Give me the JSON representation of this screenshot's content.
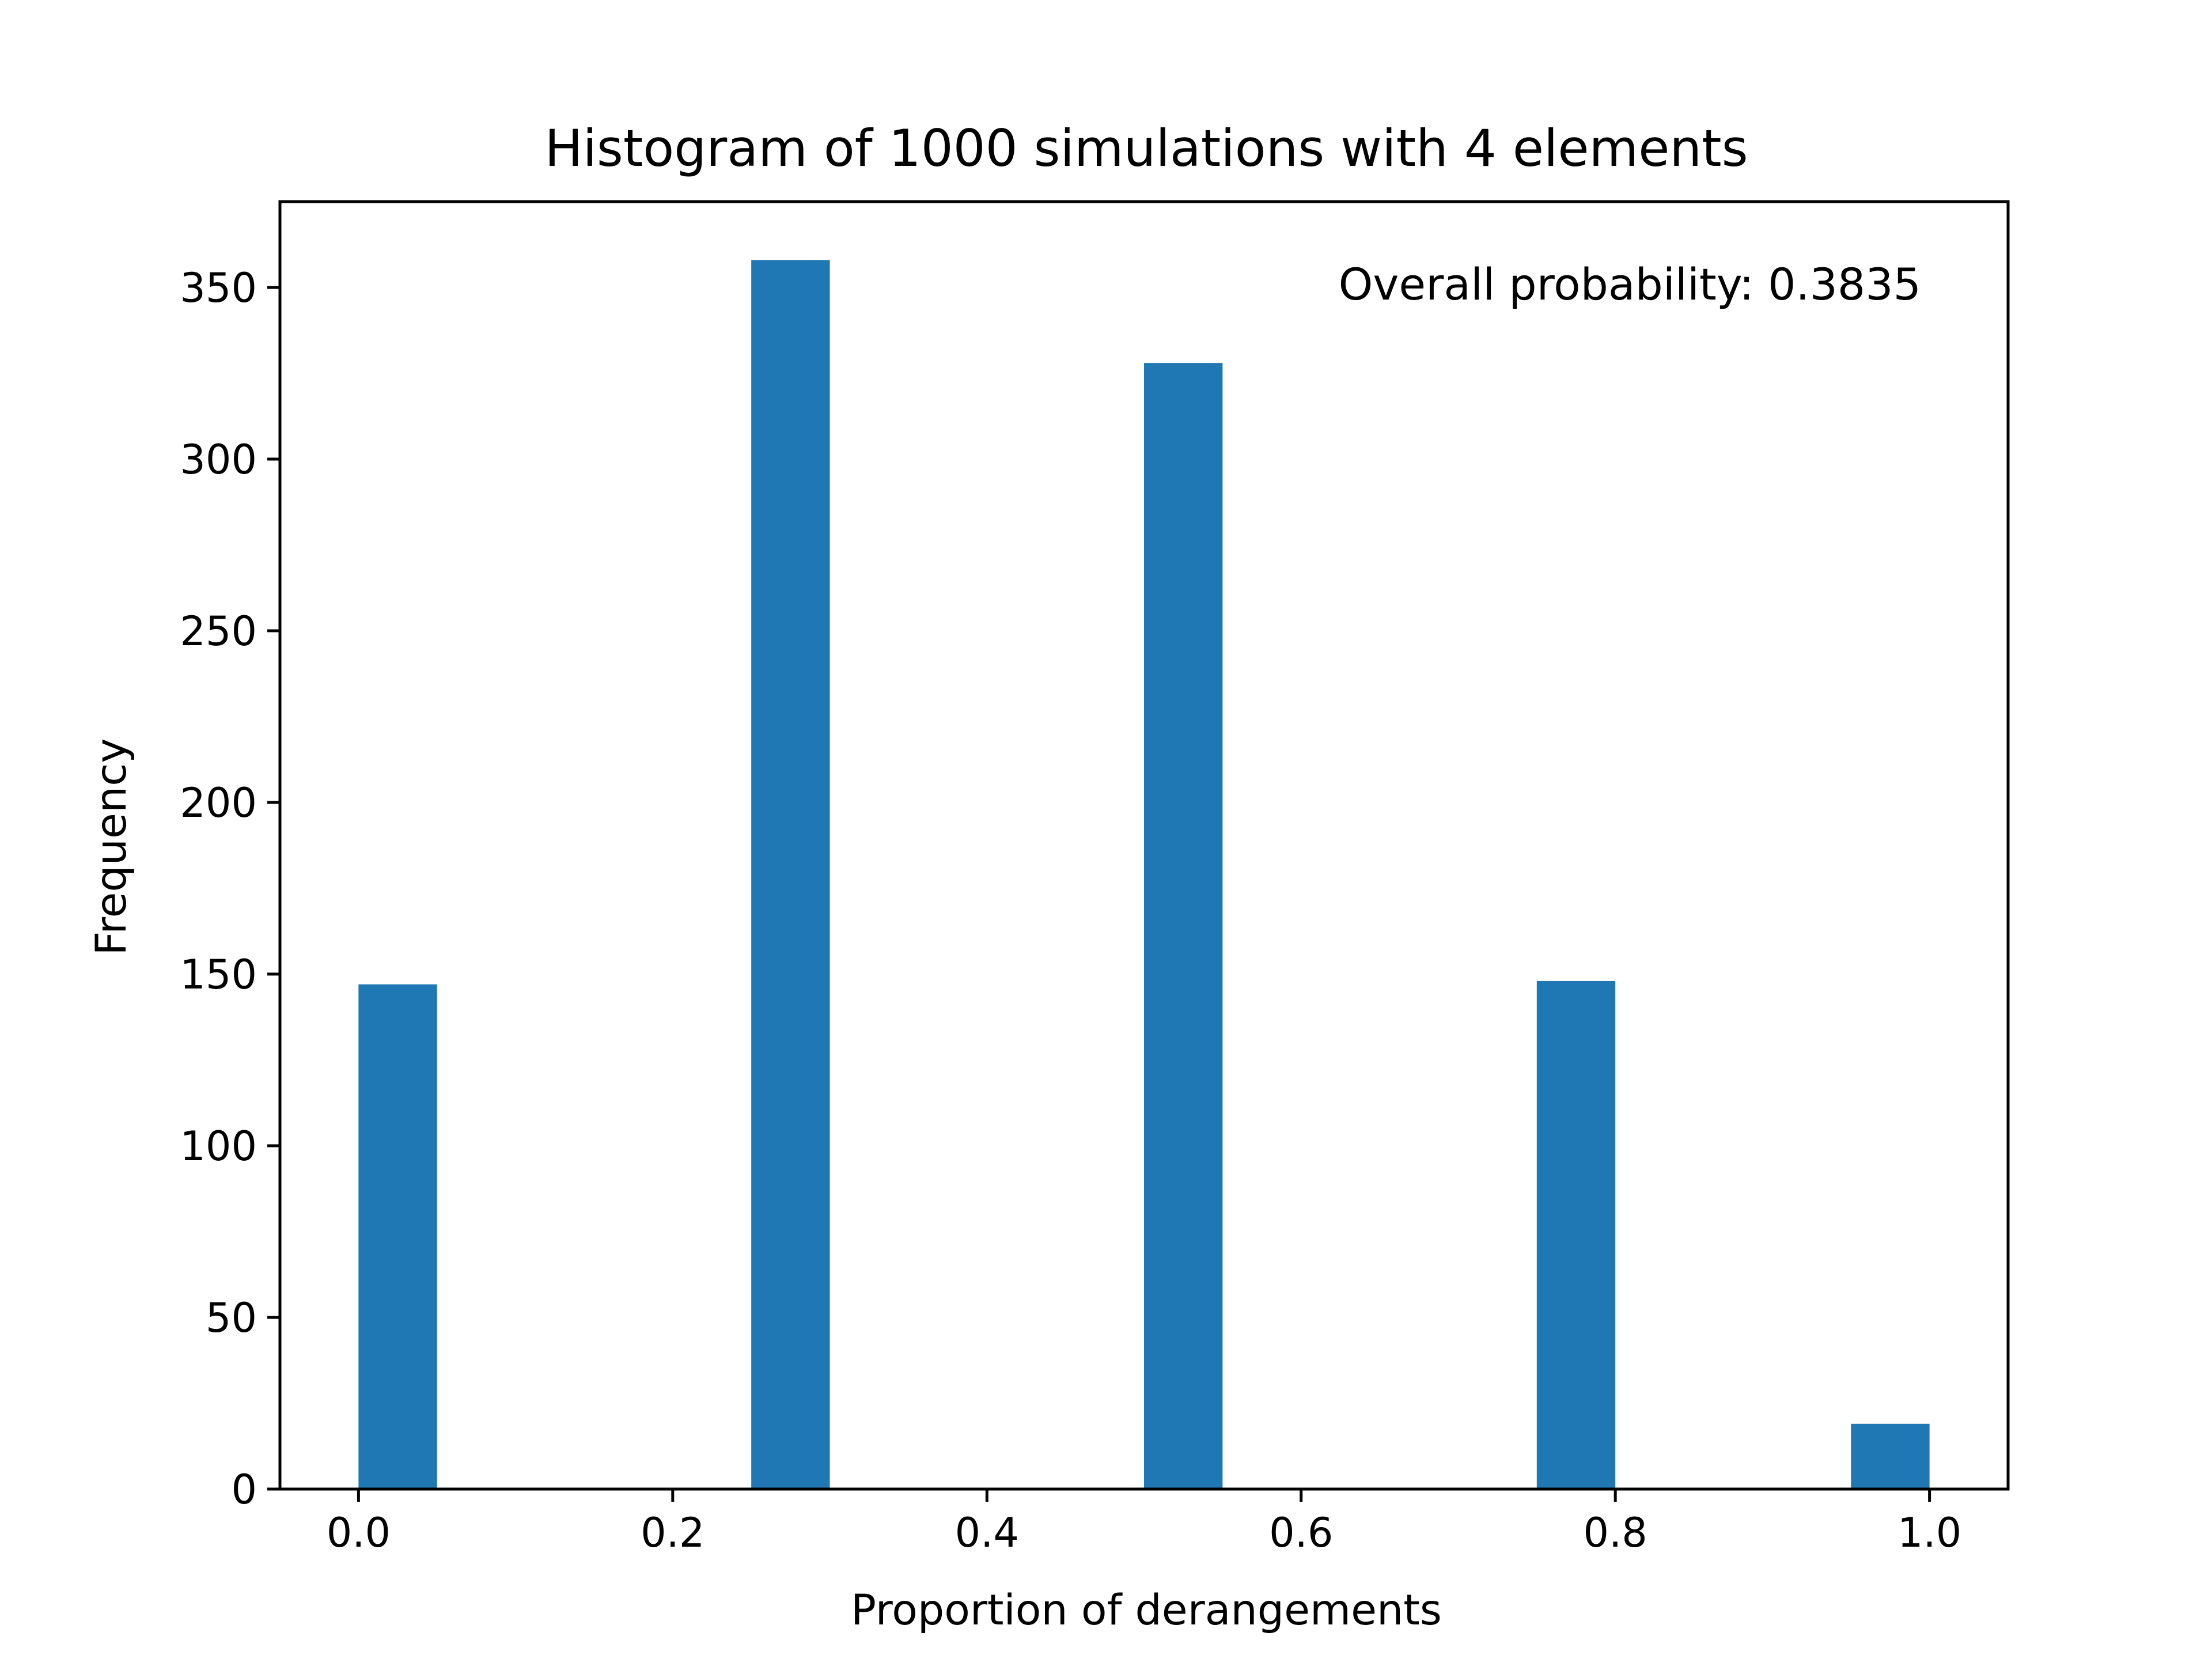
{
  "chart_data": {
    "type": "bar",
    "title": "Histogram of 1000 simulations with 4 elements",
    "xlabel": "Proportion of derangements",
    "ylabel": "Frequency",
    "annotation": "Overall probability: 0.3835",
    "bar_color": "#1f77b4",
    "xlim": [
      -0.05,
      1.05
    ],
    "ylim": [
      0,
      375
    ],
    "xticks": [
      0.0,
      0.2,
      0.4,
      0.6,
      0.8,
      1.0
    ],
    "xtick_labels": [
      "0.0",
      "0.2",
      "0.4",
      "0.6",
      "0.8",
      "1.0"
    ],
    "yticks": [
      0,
      50,
      100,
      150,
      200,
      250,
      300,
      350
    ],
    "ytick_labels": [
      "0",
      "50",
      "100",
      "150",
      "200",
      "250",
      "300",
      "350"
    ],
    "bins": [
      {
        "start": 0.0,
        "end": 0.05,
        "value": 147
      },
      {
        "start": 0.25,
        "end": 0.3,
        "value": 358
      },
      {
        "start": 0.5,
        "end": 0.55,
        "value": 328
      },
      {
        "start": 0.75,
        "end": 0.8,
        "value": 148
      },
      {
        "start": 0.95,
        "end": 1.0,
        "value": 19
      }
    ],
    "grid": false,
    "legend": "none"
  }
}
